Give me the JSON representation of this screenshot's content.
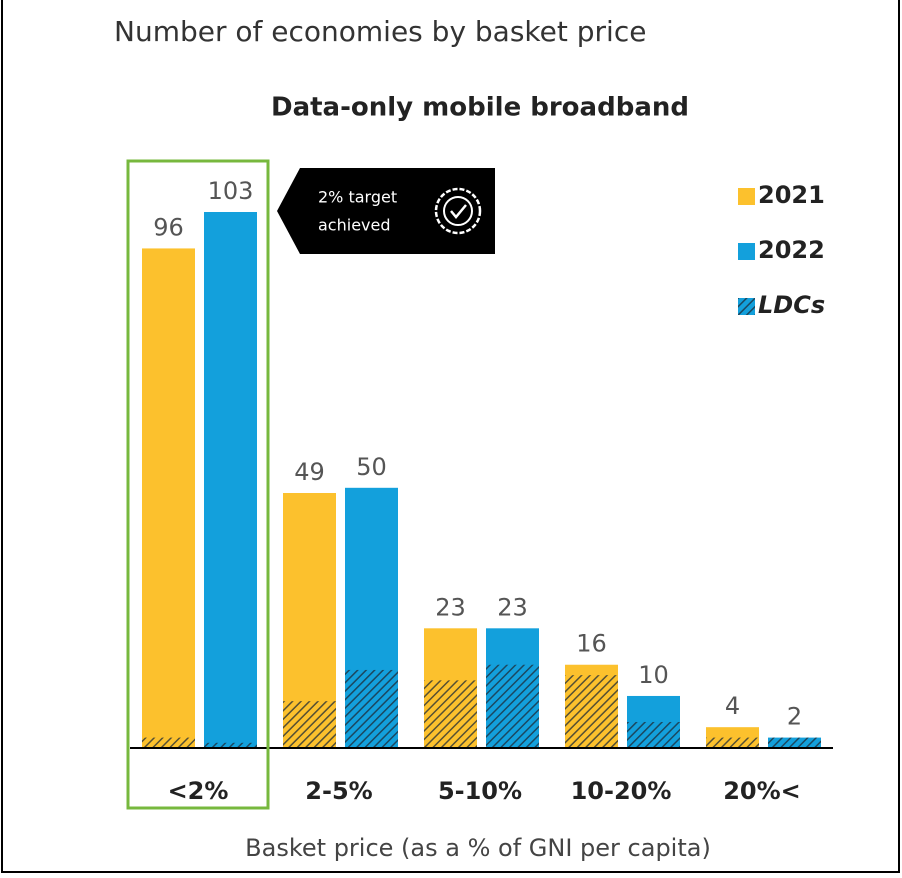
{
  "chart_data": {
    "type": "bar",
    "title": "Number of economies by basket price",
    "subtitle": "Data-only mobile broadband",
    "x_label": "Basket price (as a % of GNI per capita)",
    "categories": [
      "<2%",
      "2-5%",
      "5-10%",
      "10-20%",
      "20%<"
    ],
    "series": [
      {
        "name": "2021",
        "color": "#fcc12d",
        "values": [
          96,
          49,
          23,
          16,
          4
        ],
        "subset_values": [
          2,
          9,
          13,
          14,
          2
        ]
      },
      {
        "name": "2022",
        "color": "#13a0dc",
        "values": [
          103,
          50,
          23,
          10,
          2
        ],
        "subset_values": [
          1,
          15,
          16,
          5,
          2
        ]
      }
    ],
    "subset_name": "LDCs",
    "subset_pattern": "hatch",
    "highlight_category": 0,
    "highlight_color": "#77b83e",
    "annotation": {
      "lines": [
        "2% target",
        "achieved"
      ]
    },
    "legend": "top-right"
  }
}
